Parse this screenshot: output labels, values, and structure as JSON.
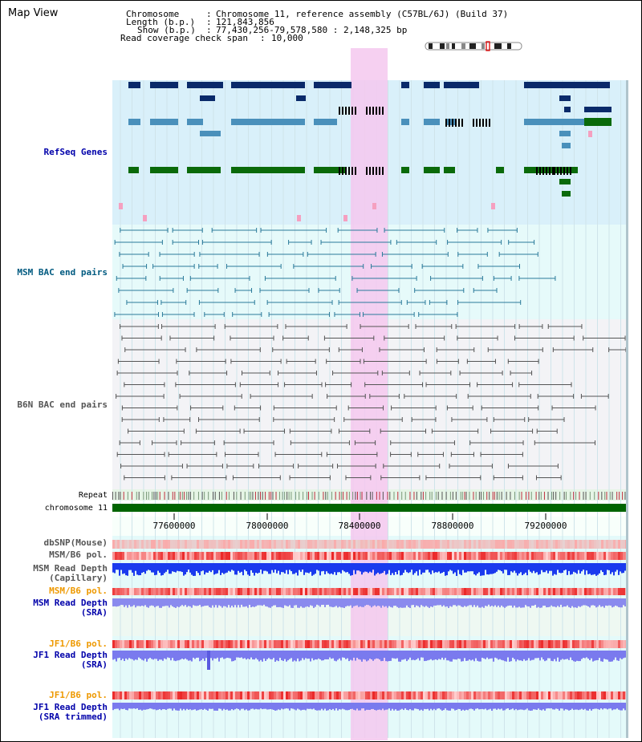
{
  "app": {
    "title": "Map View"
  },
  "header": {
    "chromosome_label": "Chromosome",
    "chromosome_value": "Chromosome 11, reference assembly (C57BL/6J) (Build 37)",
    "length_label": "Length (b.p.)",
    "length_value": "121,843,856",
    "show_label": "Show (b.p.)",
    "show_value": "77,430,256-79,578,580 : 2,148,325 bp",
    "coverage_label": "Read coverage check span",
    "coverage_value": "10,000",
    "sep": ":"
  },
  "tracks": {
    "refseq": "RefSeq Genes",
    "msm_bac": "MSM BAC end pairs",
    "b6n_bac": "B6N BAC end pairs",
    "repeat": "Repeat",
    "chromosome": "chromosome 11",
    "dbsnp": "dbSNP(Mouse)",
    "msm_b6_pol": "MSM/B6 pol.",
    "msm_depth_cap_1": "MSM Read Depth",
    "msm_depth_cap_2": "(Capillary)",
    "msm_b6_pol_2": "MSM/B6 pol.",
    "msm_depth_sra_1": "MSM Read Depth",
    "msm_depth_sra_2": "(SRA)",
    "jf1_b6_pol": "JF1/B6 pol.",
    "jf1_depth_sra_1": "JF1 Read Depth",
    "jf1_depth_sra_2": "(SRA)",
    "jf1_b6_pol_2": "JF1/B6 pol.",
    "jf1_depth_trim_1": "JF1 Read Depth",
    "jf1_depth_trim_2": "(SRA trimmed)"
  },
  "axis": {
    "ticks": [
      {
        "bp": 77600000,
        "label": "77600000"
      },
      {
        "bp": 78000000,
        "label": "78000000"
      },
      {
        "bp": 78400000,
        "label": "78400000"
      },
      {
        "bp": 78800000,
        "label": "78800000"
      },
      {
        "bp": 79200000,
        "label": "79200000"
      }
    ]
  },
  "colors": {
    "refseq_bg": "#d9f0fa",
    "msm_bg": "#e6fafa",
    "b6n_bg": "#f3f3f6",
    "highlight": "#f5c8ee",
    "gene_dark": "#0a2a6a",
    "gene_mid": "#4a90bb",
    "gene_green": "#0a6a0a",
    "msm_bac": "#2a7a9a",
    "b6n_bac": "#555555",
    "chromosome_bar": "#006400",
    "depth_blue": "#1a3aee",
    "depth_light": "#7a7aee",
    "pol_red": "#ee3333",
    "label_blue": "#0000aa",
    "label_orange": "#ee9900"
  }
}
